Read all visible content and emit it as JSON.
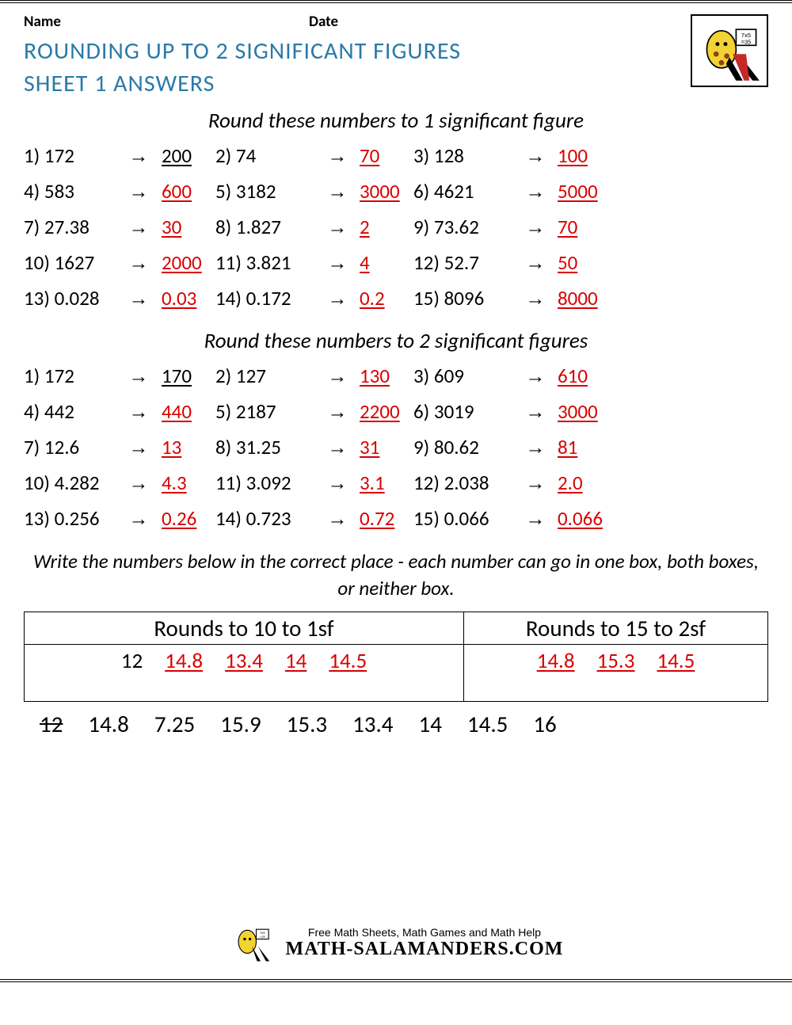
{
  "header": {
    "name_label": "Name",
    "date_label": "Date"
  },
  "title_line1": "ROUNDING UP TO 2 SIGNIFICANT FIGURES",
  "title_line2": "SHEET 1 ANSWERS",
  "section1": {
    "heading": "Round these numbers to 1 significant figure",
    "arrow": "→",
    "items": [
      {
        "n": "1)",
        "q": "172",
        "a": "200",
        "first": true
      },
      {
        "n": "2)",
        "q": "74",
        "a": "70"
      },
      {
        "n": "3)",
        "q": "128",
        "a": "100"
      },
      {
        "n": "4)",
        "q": "583",
        "a": "600"
      },
      {
        "n": "5)",
        "q": "3182",
        "a": "3000"
      },
      {
        "n": "6)",
        "q": "4621",
        "a": "5000"
      },
      {
        "n": "7)",
        "q": "27.38",
        "a": "30"
      },
      {
        "n": "8)",
        "q": "1.827",
        "a": "2"
      },
      {
        "n": "9)",
        "q": "73.62",
        "a": "70"
      },
      {
        "n": "10)",
        "q": "1627",
        "a": "2000"
      },
      {
        "n": "11)",
        "q": "3.821",
        "a": "4"
      },
      {
        "n": "12)",
        "q": "52.7",
        "a": "50"
      },
      {
        "n": "13)",
        "q": "0.028",
        "a": "0.03"
      },
      {
        "n": "14)",
        "q": "0.172",
        "a": "0.2"
      },
      {
        "n": "15)",
        "q": "8096",
        "a": "8000"
      }
    ]
  },
  "section2": {
    "heading": "Round these numbers to 2 significant figures",
    "arrow": "→",
    "items": [
      {
        "n": "1)",
        "q": "172",
        "a": "170",
        "first": true
      },
      {
        "n": "2)",
        "q": "127",
        "a": "130"
      },
      {
        "n": "3)",
        "q": "609",
        "a": "610"
      },
      {
        "n": "4)",
        "q": "442",
        "a": "440"
      },
      {
        "n": "5)",
        "q": "2187",
        "a": "2200"
      },
      {
        "n": "6)",
        "q": "3019",
        "a": "3000"
      },
      {
        "n": "7)",
        "q": "12.6",
        "a": "13"
      },
      {
        "n": "8)",
        "q": "31.25",
        "a": "31"
      },
      {
        "n": "9)",
        "q": "80.62",
        "a": "81"
      },
      {
        "n": "10)",
        "q": "4.282",
        "a": "4.3"
      },
      {
        "n": "11)",
        "q": "3.092",
        "a": "3.1"
      },
      {
        "n": "12)",
        "q": "2.038",
        "a": "2.0"
      },
      {
        "n": "13)",
        "q": "0.256",
        "a": "0.26"
      },
      {
        "n": "14)",
        "q": "0.723",
        "a": "0.72"
      },
      {
        "n": "15)",
        "q": "0.066",
        "a": "0.066"
      }
    ]
  },
  "instruction": "Write the numbers below in the correct place - each number can go in one box, both boxes, or neither box.",
  "boxes": {
    "col1_head": "Rounds to 10 to 1sf",
    "col2_head": "Rounds to 15 to 2sf",
    "col1_values": [
      {
        "v": "12",
        "plain": true
      },
      {
        "v": "14.8"
      },
      {
        "v": "13.4"
      },
      {
        "v": "14"
      },
      {
        "v": "14.5"
      }
    ],
    "col2_values": [
      {
        "v": "14.8"
      },
      {
        "v": "15.3"
      },
      {
        "v": "14.5"
      }
    ]
  },
  "pool": [
    {
      "v": "12",
      "strike": true
    },
    {
      "v": "14.8"
    },
    {
      "v": "7.25"
    },
    {
      "v": "15.9"
    },
    {
      "v": "15.3"
    },
    {
      "v": "13.4"
    },
    {
      "v": "14"
    },
    {
      "v": "14.5"
    },
    {
      "v": "16"
    }
  ],
  "footer": {
    "tagline": "Free Math Sheets, Math Games and Math Help",
    "brand": "MATH-SALAMANDERS.COM"
  },
  "colors": {
    "title": "#2a7aa8",
    "answer": "#d90000",
    "text": "#000000"
  }
}
